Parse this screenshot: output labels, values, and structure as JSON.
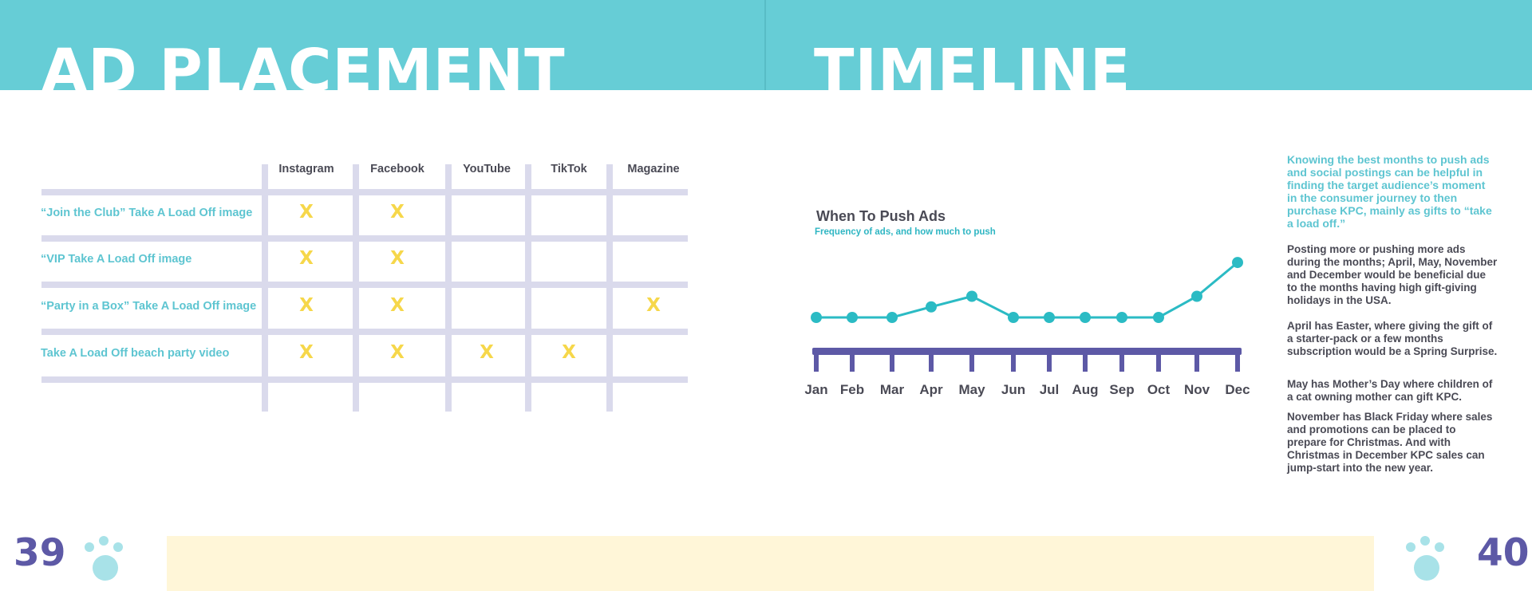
{
  "left_page": {
    "title": "AD PLACEMENT",
    "page_number": "39",
    "table": {
      "columns": [
        "Instagram",
        "Facebook",
        "YouTube",
        "TikTok",
        "Magazine"
      ],
      "rows": [
        {
          "label": "“Join the Club” Take A Load Off image",
          "marks": [
            true,
            true,
            false,
            false,
            false
          ]
        },
        {
          "label": "“VIP Take A Load Off image",
          "marks": [
            true,
            true,
            false,
            false,
            false
          ]
        },
        {
          "label": "“Party in a Box” Take A Load Off image",
          "marks": [
            true,
            true,
            false,
            false,
            true
          ]
        },
        {
          "label": "Take A Load Off beach party video",
          "marks": [
            true,
            true,
            true,
            true,
            false
          ]
        }
      ],
      "mark_symbol": "X"
    }
  },
  "right_page": {
    "title": "TIMELINE",
    "page_number": "40",
    "intro": "Knowing the best months to push ads and social postings can be helpful in finding the target audience’s moment in the consumer journey to then purchase KPC, mainly as gifts to “take a load off.”",
    "paragraphs": [
      "Posting more or pushing more ads during the months; April, May, November and December would be beneficial due to the months having high gift-giving holidays in the USA.",
      "April has Easter, where giving the gift of a starter-pack or a few months subscription would be a Spring Surprise.",
      "May has Mother’s Day where children of a cat owning mother can gift KPC.",
      "November has Black Friday where sales and promotions can be placed to prepare for Christmas. And with Christmas in December KPC sales can jump-start into the new year."
    ]
  },
  "chart_data": {
    "type": "line",
    "title": "When To Push Ads",
    "subtitle": "Frequency of ads, and how much to push",
    "categories": [
      "Jan",
      "Feb",
      "Mar",
      "Apr",
      "May",
      "Jun",
      "Jul",
      "Aug",
      "Sep",
      "Oct",
      "Nov",
      "Dec"
    ],
    "series": [
      {
        "values": [
          1,
          1,
          1,
          1.5,
          2,
          1,
          1,
          1,
          1,
          1,
          2,
          3.6
        ]
      }
    ],
    "ylim": [
      0,
      4
    ],
    "grid": false,
    "colors": {
      "line": "#2bbbc4",
      "axis": "#5d59a6"
    }
  },
  "colors": {
    "banner": "#66cdd6",
    "accent_text": "#5ec5d1",
    "body_text": "#4a4a55",
    "page_number": "#5d59a6",
    "mark": "#f6d74a",
    "footer_band": "#fff6d8",
    "paw": "#a8e2e8"
  },
  "icons": {
    "paw_left": "paw-print-icon",
    "paw_right": "paw-print-icon"
  }
}
